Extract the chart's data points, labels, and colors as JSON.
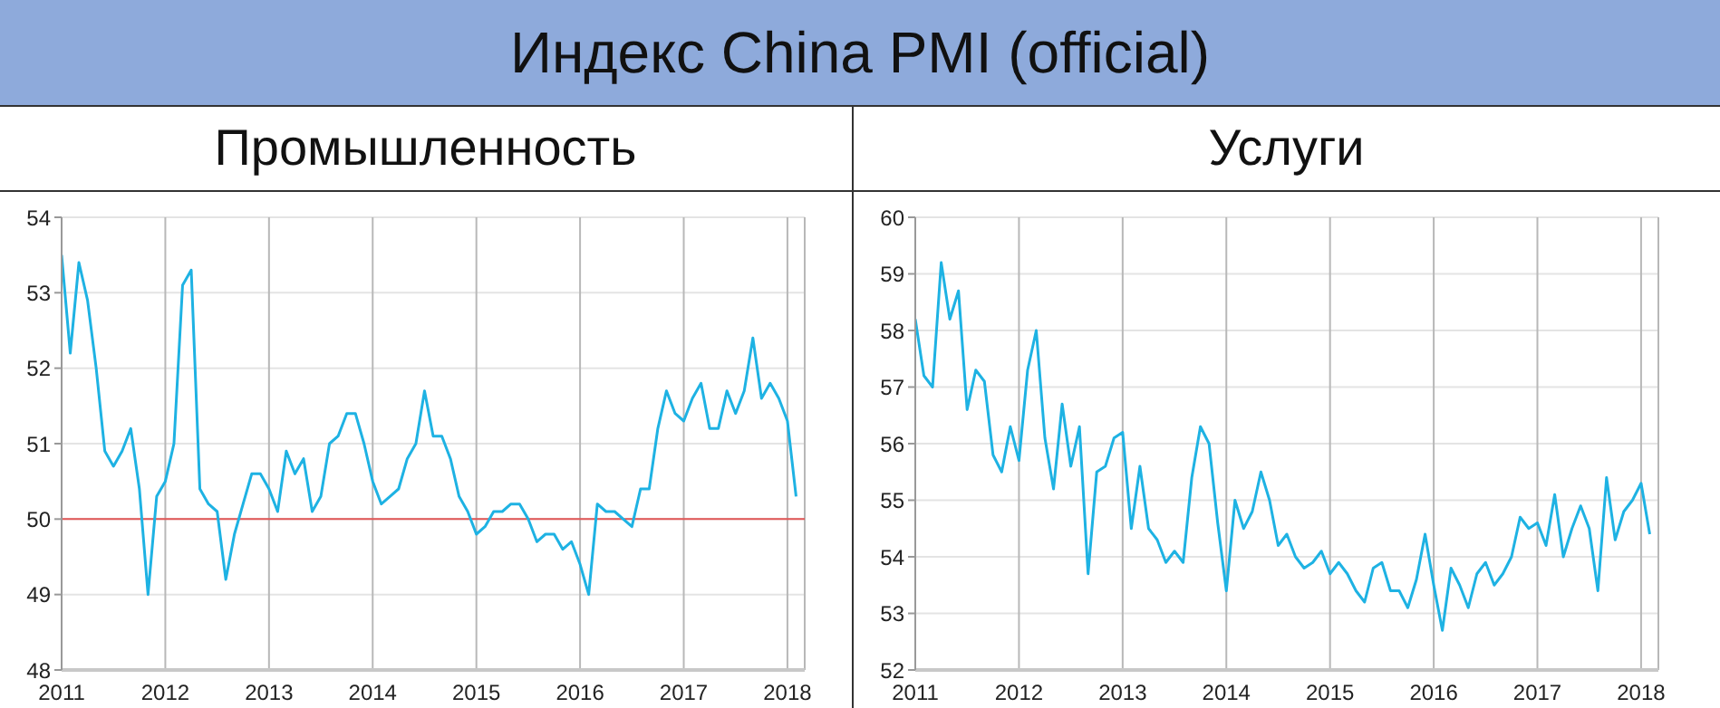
{
  "chart_data": [
    {
      "type": "line",
      "title": "Индекс China PMI (official)",
      "subtitle": "Промышленность",
      "x": [
        "2011-01",
        "2011-02",
        "2011-03",
        "2011-04",
        "2011-05",
        "2011-06",
        "2011-07",
        "2011-08",
        "2011-09",
        "2011-10",
        "2011-11",
        "2011-12",
        "2012-01",
        "2012-02",
        "2012-03",
        "2012-04",
        "2012-05",
        "2012-06",
        "2012-07",
        "2012-08",
        "2012-09",
        "2012-10",
        "2012-11",
        "2012-12",
        "2013-01",
        "2013-02",
        "2013-03",
        "2013-04",
        "2013-05",
        "2013-06",
        "2013-07",
        "2013-08",
        "2013-09",
        "2013-10",
        "2013-11",
        "2013-12",
        "2014-01",
        "2014-02",
        "2014-03",
        "2014-04",
        "2014-05",
        "2014-06",
        "2014-07",
        "2014-08",
        "2014-09",
        "2014-10",
        "2014-11",
        "2014-12",
        "2015-01",
        "2015-02",
        "2015-03",
        "2015-04",
        "2015-05",
        "2015-06",
        "2015-07",
        "2015-08",
        "2015-09",
        "2015-10",
        "2015-11",
        "2015-12",
        "2016-01",
        "2016-02",
        "2016-03",
        "2016-04",
        "2016-05",
        "2016-06",
        "2016-07",
        "2016-08",
        "2016-09",
        "2016-10",
        "2016-11",
        "2016-12",
        "2017-01",
        "2017-02",
        "2017-03",
        "2017-04",
        "2017-05",
        "2017-06",
        "2017-07",
        "2017-08",
        "2017-09",
        "2017-10",
        "2017-11",
        "2017-12",
        "2018-01",
        "2018-02"
      ],
      "series": [
        {
          "color": "#1eb2e3",
          "values": [
            53.5,
            52.2,
            53.4,
            52.9,
            52.0,
            50.9,
            50.7,
            50.9,
            51.2,
            50.4,
            49.0,
            50.3,
            50.5,
            51.0,
            53.1,
            53.3,
            50.4,
            50.2,
            50.1,
            49.2,
            49.8,
            50.2,
            50.6,
            50.6,
            50.4,
            50.1,
            50.9,
            50.6,
            50.8,
            50.1,
            50.3,
            51.0,
            51.1,
            51.4,
            51.4,
            51.0,
            50.5,
            50.2,
            50.3,
            50.4,
            50.8,
            51.0,
            51.7,
            51.1,
            51.1,
            50.8,
            50.3,
            50.1,
            49.8,
            49.9,
            50.1,
            50.1,
            50.2,
            50.2,
            50.0,
            49.7,
            49.8,
            49.8,
            49.6,
            49.7,
            49.4,
            49.0,
            50.2,
            50.1,
            50.1,
            50.0,
            49.9,
            50.4,
            50.4,
            51.2,
            51.7,
            51.4,
            51.3,
            51.6,
            51.8,
            51.2,
            51.2,
            51.7,
            51.4,
            51.7,
            52.4,
            51.6,
            51.8,
            51.6,
            51.3,
            50.3
          ]
        }
      ],
      "xlim": [
        "2011-01",
        "2018-03"
      ],
      "xticks": [
        "2011",
        "2012",
        "2013",
        "2014",
        "2015",
        "2016",
        "2017",
        "2018"
      ],
      "ylim": [
        48,
        54
      ],
      "yticks": [
        48,
        49,
        50,
        51,
        52,
        53,
        54
      ],
      "ref_lines": [
        {
          "axis": "y",
          "value": 50,
          "color": "#e05555"
        }
      ],
      "grid": true,
      "marker": "none",
      "legend": false
    },
    {
      "type": "line",
      "subtitle": "Услуги",
      "x": [
        "2011-01",
        "2011-02",
        "2011-03",
        "2011-04",
        "2011-05",
        "2011-06",
        "2011-07",
        "2011-08",
        "2011-09",
        "2011-10",
        "2011-11",
        "2011-12",
        "2012-01",
        "2012-02",
        "2012-03",
        "2012-04",
        "2012-05",
        "2012-06",
        "2012-07",
        "2012-08",
        "2012-09",
        "2012-10",
        "2012-11",
        "2012-12",
        "2013-01",
        "2013-02",
        "2013-03",
        "2013-04",
        "2013-05",
        "2013-06",
        "2013-07",
        "2013-08",
        "2013-09",
        "2013-10",
        "2013-11",
        "2013-12",
        "2014-01",
        "2014-02",
        "2014-03",
        "2014-04",
        "2014-05",
        "2014-06",
        "2014-07",
        "2014-08",
        "2014-09",
        "2014-10",
        "2014-11",
        "2014-12",
        "2015-01",
        "2015-02",
        "2015-03",
        "2015-04",
        "2015-05",
        "2015-06",
        "2015-07",
        "2015-08",
        "2015-09",
        "2015-10",
        "2015-11",
        "2015-12",
        "2016-01",
        "2016-02",
        "2016-03",
        "2016-04",
        "2016-05",
        "2016-06",
        "2016-07",
        "2016-08",
        "2016-09",
        "2016-10",
        "2016-11",
        "2016-12",
        "2017-01",
        "2017-02",
        "2017-03",
        "2017-04",
        "2017-05",
        "2017-06",
        "2017-07",
        "2017-08",
        "2017-09",
        "2017-10",
        "2017-11",
        "2017-12",
        "2018-01",
        "2018-02"
      ],
      "series": [
        {
          "color": "#1eb2e3",
          "values": [
            58.2,
            57.2,
            57.0,
            59.2,
            58.2,
            58.7,
            56.6,
            57.3,
            57.1,
            55.8,
            55.5,
            56.3,
            55.7,
            57.3,
            58.0,
            56.1,
            55.2,
            56.7,
            55.6,
            56.3,
            53.7,
            55.5,
            55.6,
            56.1,
            56.2,
            54.5,
            55.6,
            54.5,
            54.3,
            53.9,
            54.1,
            53.9,
            55.4,
            56.3,
            56.0,
            54.6,
            53.4,
            55.0,
            54.5,
            54.8,
            55.5,
            55.0,
            54.2,
            54.4,
            54.0,
            53.8,
            53.9,
            54.1,
            53.7,
            53.9,
            53.7,
            53.4,
            53.2,
            53.8,
            53.9,
            53.4,
            53.4,
            53.1,
            53.6,
            54.4,
            53.5,
            52.7,
            53.8,
            53.5,
            53.1,
            53.7,
            53.9,
            53.5,
            53.7,
            54.0,
            54.7,
            54.5,
            54.6,
            54.2,
            55.1,
            54.0,
            54.5,
            54.9,
            54.5,
            53.4,
            55.4,
            54.3,
            54.8,
            55.0,
            55.3,
            54.4
          ]
        }
      ],
      "xlim": [
        "2011-01",
        "2018-03"
      ],
      "xticks": [
        "2011",
        "2012",
        "2013",
        "2014",
        "2015",
        "2016",
        "2017",
        "2018"
      ],
      "ylim": [
        52,
        60
      ],
      "yticks": [
        52,
        53,
        54,
        55,
        56,
        57,
        58,
        59,
        60
      ],
      "grid": true,
      "marker": "none",
      "legend": false
    }
  ]
}
